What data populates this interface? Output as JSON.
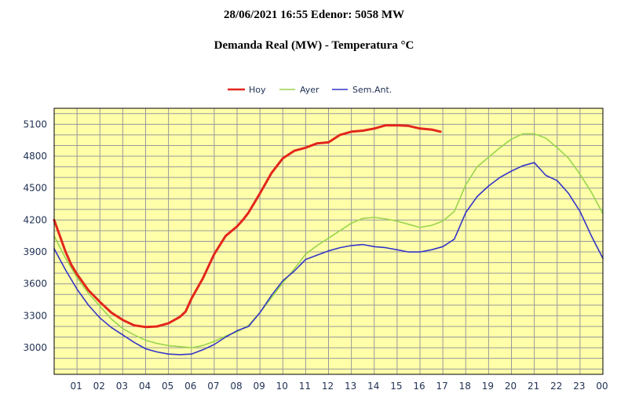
{
  "header": {
    "title": "28/06/2021 16:55 Edenor: 5058 MW",
    "subtitle": "Demanda Real (MW) - Temperatura °C"
  },
  "chart_data": {
    "type": "line",
    "title": "Demanda Real (MW) - Temperatura °C",
    "xlabel": "",
    "ylabel": "",
    "xlim": [
      0,
      24
    ],
    "ylim": [
      2750,
      5250
    ],
    "yticks": [
      3000,
      3300,
      3600,
      3900,
      4200,
      4500,
      4800,
      5100
    ],
    "xtick_labels": [
      "01",
      "02",
      "03",
      "04",
      "05",
      "06",
      "07",
      "08",
      "09",
      "10",
      "11",
      "12",
      "13",
      "14",
      "15",
      "16",
      "17",
      "18",
      "19",
      "20",
      "21",
      "22",
      "23",
      "00"
    ],
    "grid": true,
    "legend_position": "top-center",
    "colors": {
      "plot_bg": "#ffffaa",
      "grid": "#999999",
      "hoy": "#e3261c",
      "ayer": "#99d44d",
      "sem": "#3434c8"
    },
    "series": [
      {
        "name": "Hoy",
        "color": "#e3261c",
        "x": [
          0,
          0.25,
          0.5,
          0.75,
          1,
          1.5,
          2,
          2.5,
          3,
          3.5,
          4,
          4.5,
          5,
          5.5,
          5.75,
          6,
          6.5,
          7,
          7.5,
          8,
          8.25,
          8.5,
          9,
          9.5,
          10,
          10.5,
          11,
          11.5,
          12,
          12.5,
          13,
          13.5,
          14,
          14.5,
          15,
          15.5,
          16,
          16.5,
          16.9
        ],
        "y": [
          4200,
          4050,
          3900,
          3780,
          3690,
          3540,
          3430,
          3330,
          3260,
          3210,
          3195,
          3200,
          3230,
          3290,
          3340,
          3460,
          3650,
          3880,
          4050,
          4140,
          4200,
          4270,
          4450,
          4640,
          4780,
          4850,
          4880,
          4920,
          4930,
          5000,
          5030,
          5040,
          5060,
          5090,
          5090,
          5085,
          5060,
          5050,
          5030
        ]
      },
      {
        "name": "Ayer",
        "color": "#99d44d",
        "x": [
          0,
          0.5,
          1,
          1.5,
          2,
          2.5,
          3,
          3.5,
          4,
          4.5,
          5,
          5.5,
          6,
          6.5,
          7,
          7.5,
          8,
          8.5,
          9,
          9.5,
          10,
          10.5,
          11,
          11.5,
          12,
          12.5,
          13,
          13.5,
          14,
          14.5,
          15,
          15.5,
          16,
          16.5,
          17,
          17.5,
          18,
          18.5,
          19,
          19.5,
          20,
          20.5,
          21,
          21.5,
          22,
          22.5,
          23,
          23.5,
          24
        ],
        "y": [
          4050,
          3840,
          3660,
          3510,
          3390,
          3270,
          3180,
          3120,
          3070,
          3040,
          3020,
          3010,
          3000,
          3020,
          3060,
          3110,
          3150,
          3210,
          3330,
          3470,
          3610,
          3740,
          3880,
          3960,
          4030,
          4100,
          4170,
          4215,
          4225,
          4210,
          4190,
          4160,
          4130,
          4150,
          4190,
          4280,
          4530,
          4700,
          4790,
          4880,
          4960,
          5010,
          5010,
          4970,
          4880,
          4780,
          4630,
          4460,
          4260
        ]
      },
      {
        "name": "Sem.Ant.",
        "color": "#3434c8",
        "x": [
          0,
          0.5,
          1,
          1.5,
          2,
          2.5,
          3,
          3.5,
          4,
          4.5,
          5,
          5.5,
          6,
          6.5,
          7,
          7.5,
          8,
          8.5,
          9,
          9.5,
          10,
          10.5,
          11,
          11.5,
          12,
          12.5,
          13,
          13.5,
          14,
          14.5,
          15,
          15.5,
          16,
          16.5,
          17,
          17.5,
          18,
          18.5,
          19,
          19.5,
          20,
          20.5,
          21,
          21.5,
          22,
          22.5,
          23,
          23.5,
          24
        ],
        "y": [
          3930,
          3730,
          3550,
          3400,
          3280,
          3190,
          3120,
          3050,
          2990,
          2960,
          2940,
          2935,
          2940,
          2980,
          3030,
          3100,
          3160,
          3200,
          3330,
          3490,
          3630,
          3720,
          3830,
          3870,
          3910,
          3940,
          3960,
          3970,
          3950,
          3940,
          3920,
          3900,
          3900,
          3920,
          3950,
          4020,
          4270,
          4420,
          4520,
          4600,
          4660,
          4710,
          4740,
          4620,
          4570,
          4450,
          4280,
          4050,
          3840
        ]
      }
    ]
  }
}
